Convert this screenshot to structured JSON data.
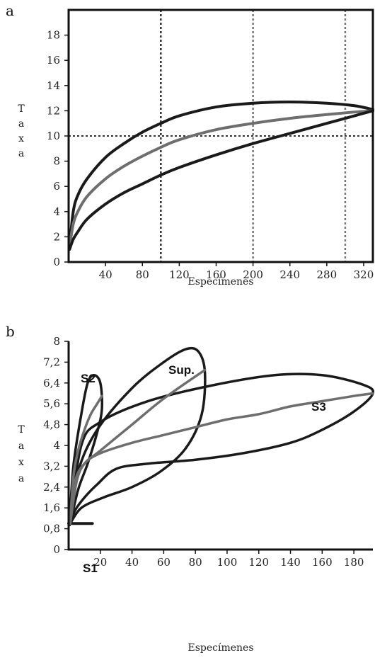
{
  "chart_data": [
    {
      "panel_label": "a",
      "type": "line",
      "xlabel": "Especímenes",
      "ylabel": "Taxa",
      "xlim": [
        0,
        330
      ],
      "ylim": [
        0,
        20
      ],
      "xticks": [
        "40",
        "80",
        "120",
        "160",
        "200",
        "240",
        "280",
        "320"
      ],
      "xtick_values": [
        40,
        80,
        120,
        160,
        200,
        240,
        280,
        320
      ],
      "yticks": [
        "0",
        "2",
        "4",
        "6",
        "8",
        "10",
        "12",
        "14",
        "16",
        "18"
      ],
      "ytick_values": [
        0,
        2,
        4,
        6,
        8,
        10,
        12,
        14,
        16,
        18
      ],
      "reference_lines": {
        "vertical": [
          100,
          200,
          300
        ],
        "horizontal": [
          10
        ]
      },
      "series": [
        {
          "color": "#1a1a1a",
          "x": [
            1,
            5,
            10,
            20,
            40,
            60,
            80,
            100,
            120,
            160,
            200,
            240,
            280,
            310,
            330
          ],
          "y": [
            1.2,
            4.0,
            5.3,
            6.6,
            8.3,
            9.4,
            10.3,
            11.0,
            11.6,
            12.3,
            12.6,
            12.7,
            12.6,
            12.4,
            12.1
          ]
        },
        {
          "color": "#6e6e6e",
          "x": [
            1,
            5,
            10,
            20,
            40,
            60,
            80,
            100,
            120,
            160,
            200,
            240,
            280,
            310,
            330
          ],
          "y": [
            1.2,
            3.0,
            4.0,
            5.2,
            6.6,
            7.6,
            8.4,
            9.1,
            9.7,
            10.5,
            11.0,
            11.4,
            11.7,
            11.9,
            12.0
          ]
        },
        {
          "color": "#1a1a1a",
          "x": [
            1,
            5,
            10,
            20,
            40,
            60,
            80,
            100,
            120,
            160,
            200,
            240,
            280,
            310,
            330
          ],
          "y": [
            1.0,
            1.8,
            2.4,
            3.4,
            4.6,
            5.5,
            6.2,
            6.9,
            7.5,
            8.5,
            9.4,
            10.2,
            11.0,
            11.6,
            12.0
          ]
        }
      ]
    },
    {
      "panel_label": "b",
      "type": "line",
      "xlabel": "Especímenes",
      "ylabel": "Taxa",
      "xlim": [
        0,
        192
      ],
      "ylim": [
        0,
        8
      ],
      "xticks": [
        "20",
        "40",
        "60",
        "80",
        "100",
        "120",
        "140",
        "160",
        "180"
      ],
      "xtick_values": [
        20,
        40,
        60,
        80,
        100,
        120,
        140,
        160,
        180
      ],
      "yticks": [
        "0",
        "0,8",
        "1,6",
        "2,4",
        "3,2",
        "4",
        "4,8",
        "5,6",
        "6,4",
        "7,2",
        "8"
      ],
      "ytick_values": [
        0,
        0.8,
        1.6,
        2.4,
        3.2,
        4.0,
        4.8,
        5.6,
        6.4,
        7.2,
        8.0
      ],
      "annotations": [
        "S1",
        "S2",
        "Sup.",
        "S3"
      ],
      "series": [
        {
          "name": "S1",
          "color": "#1a1a1a",
          "x": [
            0,
            15
          ],
          "y": [
            1.0,
            1.0
          ]
        },
        {
          "name": "S2",
          "color": "#6e6e6e",
          "x": [
            1,
            3,
            6,
            10,
            14,
            18,
            21
          ],
          "y": [
            1.0,
            2.8,
            3.8,
            4.6,
            5.2,
            5.6,
            5.9
          ]
        },
        {
          "name": "Sup.",
          "color": "#6e6e6e",
          "x": [
            1,
            5,
            10,
            20,
            40,
            60,
            86
          ],
          "y": [
            1.0,
            2.6,
            3.3,
            3.8,
            4.8,
            5.8,
            6.9
          ]
        },
        {
          "name": "S3",
          "color": "#6e6e6e",
          "x": [
            1,
            4,
            10,
            20,
            40,
            60,
            80,
            100,
            120,
            140,
            160,
            180,
            192
          ],
          "y": [
            1.0,
            2.6,
            3.3,
            3.7,
            4.1,
            4.4,
            4.7,
            5.0,
            5.2,
            5.5,
            5.7,
            5.9,
            6.0
          ]
        }
      ]
    }
  ]
}
